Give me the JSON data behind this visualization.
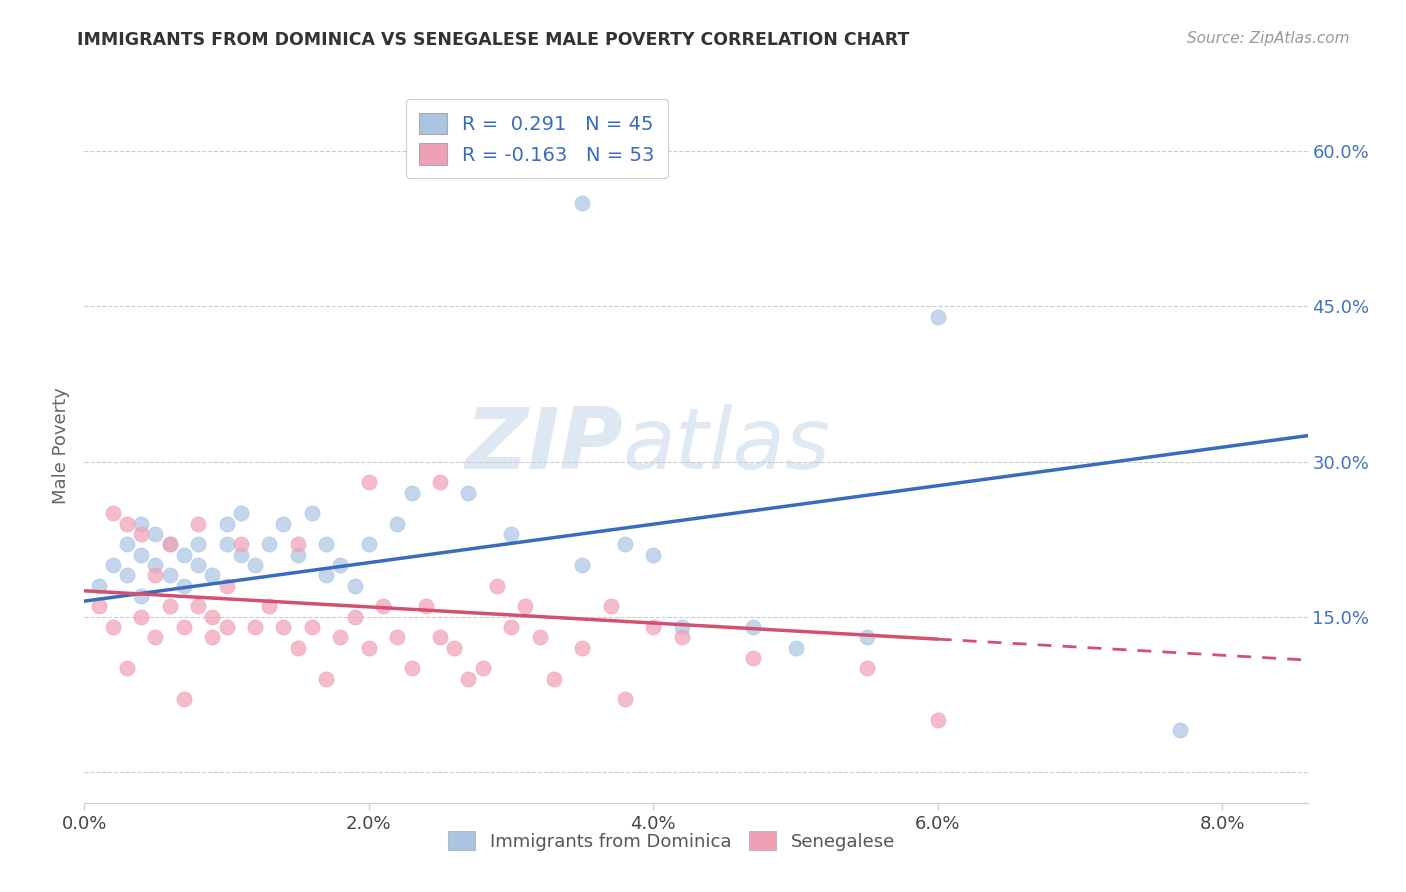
{
  "title": "IMMIGRANTS FROM DOMINICA VS SENEGALESE MALE POVERTY CORRELATION CHART",
  "source": "Source: ZipAtlas.com",
  "ylabel": "Male Poverty",
  "xlim": [
    0.0,
    0.086
  ],
  "ylim": [
    -0.03,
    0.66
  ],
  "y_ticks": [
    0.0,
    0.15,
    0.3,
    0.45,
    0.6
  ],
  "y_tick_labels": [
    "",
    "15.0%",
    "30.0%",
    "45.0%",
    "60.0%"
  ],
  "x_ticks": [
    0.0,
    0.02,
    0.04,
    0.06,
    0.08
  ],
  "x_tick_labels": [
    "0.0%",
    "2.0%",
    "4.0%",
    "6.0%",
    "8.0%"
  ],
  "legend_labels": [
    "Immigrants from Dominica",
    "Senegalese"
  ],
  "R1": 0.291,
  "N1": 45,
  "R2": -0.163,
  "N2": 53,
  "blue_color": "#aac4e2",
  "pink_color": "#f0a0b5",
  "blue_line_color": "#3a6bbf",
  "pink_line_color": "#d45070",
  "right_axis_color": "#4472c4",
  "watermark": "ZIPatlas",
  "blue_x": [
    0.001,
    0.002,
    0.003,
    0.003,
    0.004,
    0.004,
    0.004,
    0.005,
    0.005,
    0.006,
    0.006,
    0.007,
    0.007,
    0.008,
    0.008,
    0.009,
    0.01,
    0.01,
    0.011,
    0.011,
    0.012,
    0.013,
    0.014,
    0.015,
    0.016,
    0.017,
    0.017,
    0.018,
    0.019,
    0.02,
    0.022,
    0.023,
    0.027,
    0.03,
    0.035,
    0.038,
    0.04,
    0.042,
    0.047,
    0.05,
    0.055,
    0.035,
    0.04,
    0.077,
    0.06
  ],
  "blue_y": [
    0.18,
    0.2,
    0.19,
    0.22,
    0.21,
    0.24,
    0.17,
    0.2,
    0.23,
    0.19,
    0.22,
    0.21,
    0.18,
    0.22,
    0.2,
    0.19,
    0.22,
    0.24,
    0.21,
    0.25,
    0.2,
    0.22,
    0.24,
    0.21,
    0.25,
    0.22,
    0.19,
    0.2,
    0.18,
    0.22,
    0.24,
    0.27,
    0.27,
    0.23,
    0.2,
    0.22,
    0.21,
    0.14,
    0.14,
    0.12,
    0.13,
    0.55,
    0.6,
    0.04,
    0.44
  ],
  "pink_x": [
    0.001,
    0.002,
    0.002,
    0.003,
    0.003,
    0.004,
    0.004,
    0.005,
    0.005,
    0.006,
    0.006,
    0.007,
    0.007,
    0.008,
    0.008,
    0.009,
    0.009,
    0.01,
    0.01,
    0.011,
    0.012,
    0.013,
    0.014,
    0.015,
    0.015,
    0.016,
    0.017,
    0.018,
    0.019,
    0.02,
    0.021,
    0.022,
    0.023,
    0.024,
    0.025,
    0.026,
    0.027,
    0.028,
    0.029,
    0.03,
    0.031,
    0.032,
    0.033,
    0.035,
    0.037,
    0.04,
    0.042,
    0.047,
    0.02,
    0.025,
    0.038,
    0.055,
    0.06
  ],
  "pink_y": [
    0.16,
    0.14,
    0.25,
    0.1,
    0.24,
    0.15,
    0.23,
    0.13,
    0.19,
    0.16,
    0.22,
    0.14,
    0.07,
    0.16,
    0.24,
    0.13,
    0.15,
    0.14,
    0.18,
    0.22,
    0.14,
    0.16,
    0.14,
    0.12,
    0.22,
    0.14,
    0.09,
    0.13,
    0.15,
    0.12,
    0.16,
    0.13,
    0.1,
    0.16,
    0.13,
    0.12,
    0.09,
    0.1,
    0.18,
    0.14,
    0.16,
    0.13,
    0.09,
    0.12,
    0.16,
    0.14,
    0.13,
    0.11,
    0.28,
    0.28,
    0.07,
    0.1,
    0.05
  ],
  "blue_line_x0": 0.0,
  "blue_line_x1": 0.086,
  "blue_line_y0": 0.165,
  "blue_line_y1": 0.325,
  "pink_line_x0": 0.0,
  "pink_line_solid_x1": 0.06,
  "pink_line_x1": 0.086,
  "pink_line_y0": 0.175,
  "pink_line_y1": 0.108
}
